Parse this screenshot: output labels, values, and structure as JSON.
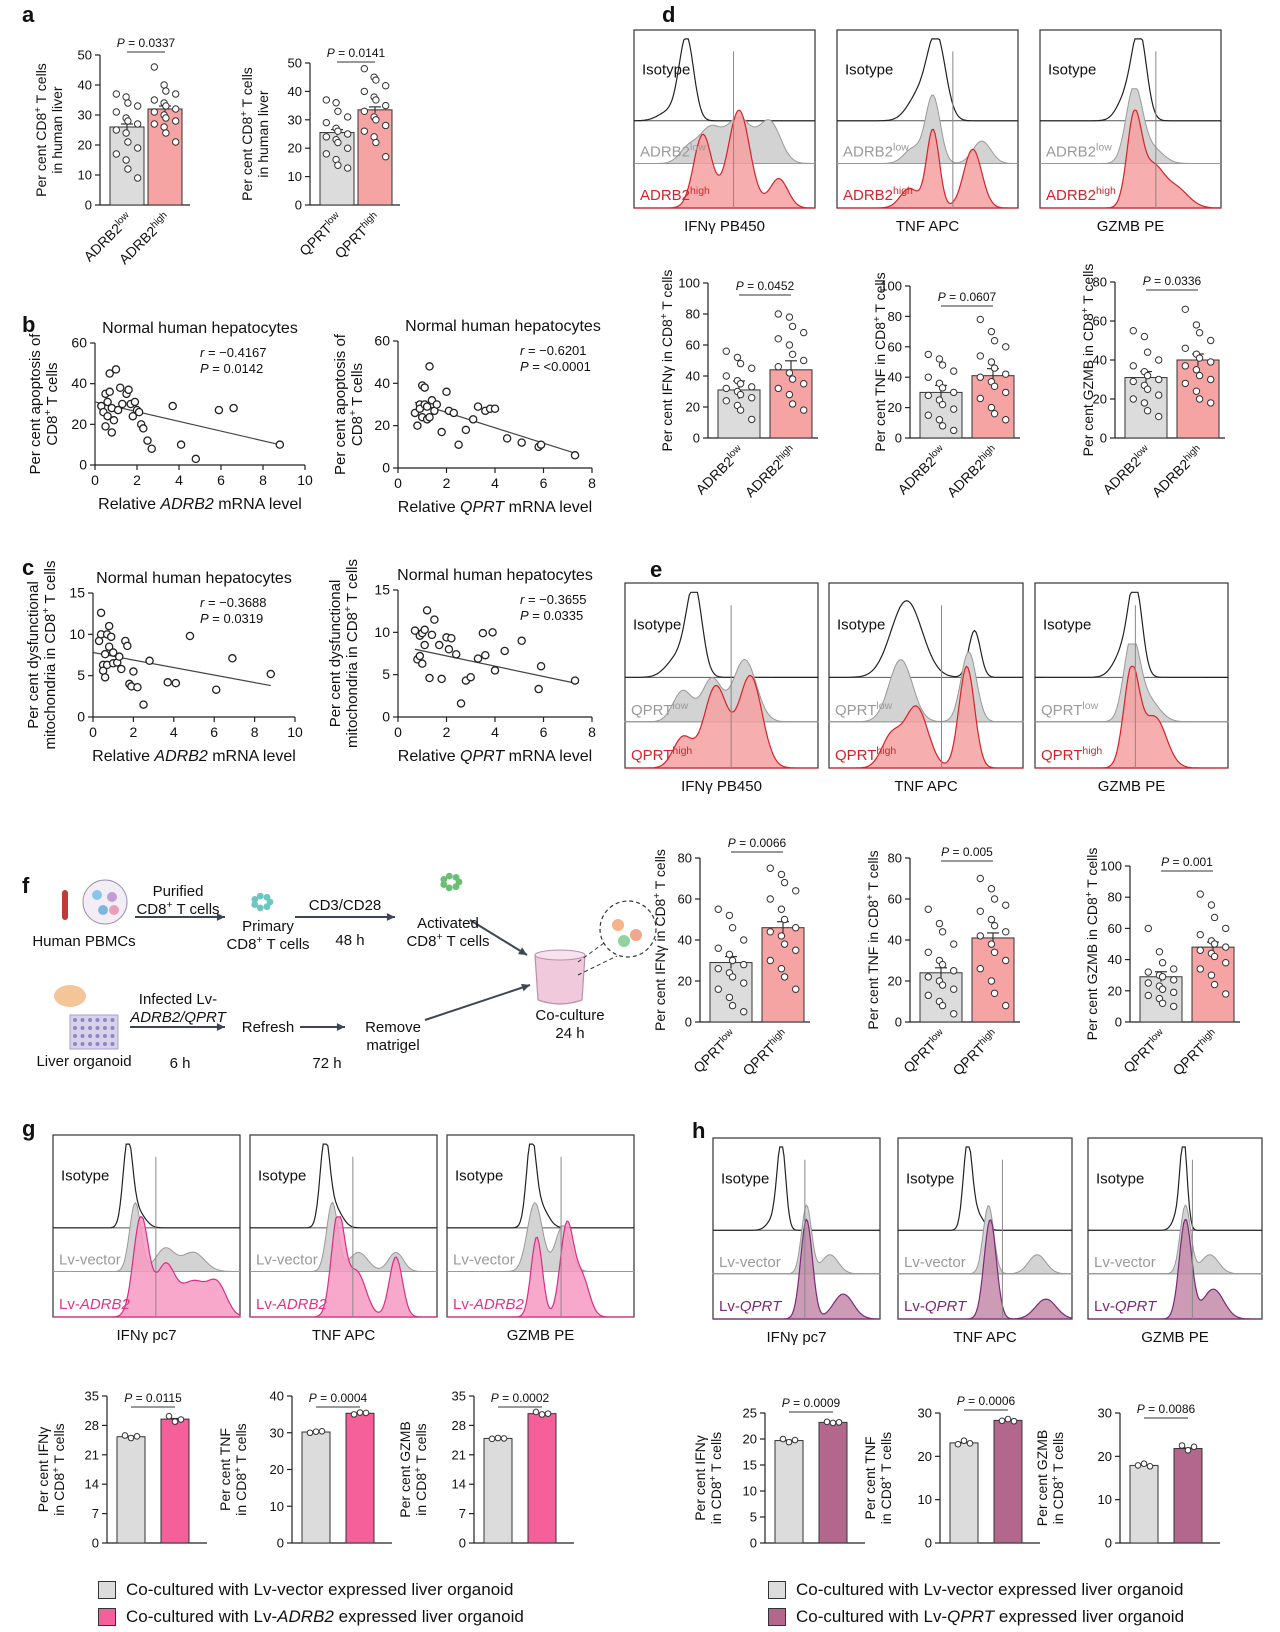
{
  "panel_letters": {
    "a": "a",
    "b": "b",
    "c": "c",
    "d": "d",
    "e": "e",
    "f": "f",
    "g": "g",
    "h": "h"
  },
  "colors": {
    "low": "#dcdcdc",
    "adrb2_high": "#f6a3a3",
    "g_high": "#f5609a",
    "h_high": "#b3678d",
    "ink": "#222222",
    "gray_text": "#9a9a9a",
    "red_text": "#d4232a",
    "pink_text": "#e0338a",
    "purple_text": "#7a2a76"
  },
  "chart_data": [
    {
      "id": "a1",
      "type": "bar",
      "categories": [
        "ADRB2low",
        "ADRB2high"
      ],
      "values": [
        26,
        32
      ],
      "ylim": [
        0,
        50
      ],
      "yticks": [
        0,
        10,
        20,
        30,
        40,
        50
      ],
      "ylabel": "Per cent CD8+ T cells in human liver",
      "p": "P = 0.0337",
      "points": [
        [
          37,
          36,
          34,
          33,
          31,
          29,
          28,
          27,
          25,
          24,
          21,
          19,
          17,
          15,
          12,
          9
        ],
        [
          46,
          40,
          38,
          37,
          35,
          34,
          33,
          32,
          31,
          30,
          29,
          28,
          27,
          26,
          24,
          21
        ]
      ]
    },
    {
      "id": "a2",
      "type": "bar",
      "categories": [
        "QPRTlow",
        "QPRThigh"
      ],
      "values": [
        25.5,
        33.5
      ],
      "ylim": [
        0,
        50
      ],
      "yticks": [
        0,
        10,
        20,
        30,
        40,
        50
      ],
      "ylabel": "Per cent CD8+ T cells in human liver",
      "p": "P = 0.0141",
      "points": [
        [
          37,
          36,
          33,
          31,
          29,
          27,
          26,
          25,
          24,
          23,
          22,
          20,
          18,
          16,
          14,
          13
        ],
        [
          48,
          45,
          44,
          42,
          40,
          38,
          37,
          35,
          33,
          31,
          30,
          28,
          26,
          24,
          22,
          17
        ]
      ]
    },
    {
      "id": "b1",
      "type": "scatter",
      "title": "Normal human hepatocytes",
      "xlabel": "Relative ADRB2 mRNA level",
      "ylabel": "Per cent apoptosis of CD8+ T cells",
      "xlim": [
        0,
        10
      ],
      "ylim": [
        0,
        60
      ],
      "xticks": [
        0,
        2,
        4,
        6,
        8,
        10
      ],
      "yticks": [
        0,
        20,
        40,
        60
      ],
      "r": "r = −0.4167",
      "p": "P = 0.0142",
      "fit": [
        [
          0,
          31
        ],
        [
          8.8,
          10
        ]
      ],
      "x": [
        0.3,
        0.4,
        0.5,
        0.5,
        0.6,
        0.6,
        0.7,
        0.7,
        0.8,
        0.8,
        0.9,
        1.0,
        1.1,
        1.2,
        1.3,
        1.5,
        1.6,
        1.7,
        1.8,
        1.9,
        2.0,
        2.1,
        2.2,
        2.3,
        2.5,
        2.7,
        3.7,
        4.1,
        4.8,
        5.9,
        6.6,
        8.8
      ],
      "y": [
        29,
        26,
        19,
        35,
        31,
        24,
        45,
        36,
        28,
        16,
        22,
        47,
        27,
        38,
        30,
        35,
        37,
        30,
        24,
        31,
        27,
        26,
        20,
        18,
        12,
        8,
        29,
        10,
        3,
        27,
        28,
        10
      ]
    },
    {
      "id": "b2",
      "type": "scatter",
      "title": "Normal human hepatocytes",
      "xlabel": "Relative QPRT mRNA level",
      "ylabel": "Per cent apoptosis of CD8+ T cells",
      "xlim": [
        0,
        8
      ],
      "ylim": [
        0,
        60
      ],
      "xticks": [
        0,
        2,
        4,
        6,
        8
      ],
      "yticks": [
        0,
        20,
        40,
        60
      ],
      "r": "r = −0.6201",
      "p": "P = <0.0001",
      "fit": [
        [
          0.7,
          31
        ],
        [
          7.3,
          7
        ]
      ],
      "x": [
        0.7,
        0.8,
        0.9,
        0.9,
        1.0,
        1.0,
        1.1,
        1.1,
        1.2,
        1.2,
        1.3,
        1.3,
        1.4,
        1.5,
        1.6,
        1.8,
        2.0,
        2.1,
        2.3,
        2.5,
        2.8,
        3.1,
        3.3,
        3.6,
        3.8,
        4.0,
        4.5,
        5.1,
        5.8,
        5.9,
        7.3
      ],
      "y": [
        26,
        20,
        30,
        28,
        24,
        39,
        30,
        38,
        29,
        23,
        48,
        24,
        32,
        27,
        30,
        17,
        36,
        27,
        26,
        11,
        18,
        23,
        29,
        27,
        28,
        28,
        14,
        12,
        10,
        11,
        6
      ]
    },
    {
      "id": "c1",
      "type": "scatter",
      "title": "Normal human hepatocytes",
      "xlabel": "Relative ADRB2 mRNA level",
      "ylabel": "Per cent dysfunctional mitochondria in CD8+ T cells",
      "xlim": [
        0,
        10
      ],
      "ylim": [
        0,
        15
      ],
      "xticks": [
        0,
        2,
        4,
        6,
        8,
        10
      ],
      "yticks": [
        0,
        5,
        10,
        15
      ],
      "r": "r = −0.3688",
      "p": "P = 0.0319",
      "fit": [
        [
          0,
          7.8
        ],
        [
          8.8,
          3.8
        ]
      ],
      "x": [
        0.3,
        0.4,
        0.4,
        0.5,
        0.5,
        0.6,
        0.6,
        0.7,
        0.7,
        0.8,
        0.8,
        0.9,
        1.0,
        1.0,
        1.2,
        1.3,
        1.4,
        1.6,
        1.7,
        1.8,
        1.9,
        2.0,
        2.2,
        2.5,
        2.8,
        3.7,
        4.1,
        4.8,
        6.1,
        6.9,
        8.8
      ],
      "y": [
        9.2,
        12.6,
        10,
        6.3,
        5.6,
        7.6,
        4.8,
        10,
        6.3,
        11,
        8.5,
        9.7,
        6.5,
        7.8,
        6.6,
        7.3,
        5.8,
        9.2,
        8.6,
        4.0,
        3.7,
        5.5,
        3.6,
        1.5,
        6.8,
        4.2,
        4.1,
        9.8,
        3.3,
        7.1,
        5.2
      ]
    },
    {
      "id": "c2",
      "type": "scatter",
      "title": "Normal human hepatocytes",
      "xlabel": "Relative QPRT mRNA level",
      "ylabel": "Per cent dysfunctional mitochondria in CD8+ T cells",
      "xlim": [
        0,
        8
      ],
      "ylim": [
        0,
        15
      ],
      "xticks": [
        0,
        2,
        4,
        6,
        8
      ],
      "yticks": [
        0,
        5,
        10,
        15
      ],
      "r": "r = −0.3655",
      "p": "P = 0.0335",
      "fit": [
        [
          0.7,
          8
        ],
        [
          7.3,
          4
        ]
      ],
      "x": [
        0.7,
        0.8,
        0.9,
        0.9,
        1.0,
        1.0,
        1.1,
        1.1,
        1.2,
        1.3,
        1.4,
        1.5,
        1.7,
        1.8,
        2.0,
        2.1,
        2.2,
        2.4,
        2.6,
        2.8,
        3.0,
        3.3,
        3.5,
        3.6,
        3.9,
        4.0,
        4.4,
        5.1,
        5.8,
        5.9,
        7.3
      ],
      "y": [
        10.2,
        6.8,
        9.6,
        7.2,
        9.9,
        6.3,
        10.3,
        8.5,
        12.6,
        4.6,
        9.7,
        11.5,
        8.5,
        4.5,
        9.4,
        8,
        9.3,
        7.4,
        1.6,
        4.3,
        4.7,
        6.9,
        9.9,
        7.3,
        10,
        5.5,
        7.8,
        9,
        3.3,
        6,
        4.3
      ]
    },
    {
      "id": "d1",
      "type": "bar",
      "categories": [
        "ADRB2low",
        "ADRB2high"
      ],
      "values": [
        31,
        44
      ],
      "ylim": [
        0,
        100
      ],
      "yticks": [
        0,
        20,
        40,
        60,
        80,
        100
      ],
      "ylabel": "Per cent IFNγ in CD8+ T cells",
      "p": "P = 0.0452",
      "points": [
        [
          56,
          52,
          48,
          45,
          40,
          37,
          35,
          33,
          32,
          30,
          28,
          26,
          24,
          21,
          18,
          12
        ],
        [
          80,
          78,
          72,
          68,
          64,
          60,
          54,
          50,
          46,
          42,
          38,
          35,
          32,
          28,
          22,
          18
        ]
      ]
    },
    {
      "id": "d2",
      "type": "bar",
      "categories": [
        "ADRB2low",
        "ADRB2high"
      ],
      "values": [
        30,
        41
      ],
      "ylim": [
        0,
        100
      ],
      "yticks": [
        0,
        20,
        40,
        60,
        80,
        100
      ],
      "ylabel": "Per cent TNF in CD8+ T cells",
      "p": "P = 0.0607",
      "points": [
        [
          55,
          52,
          48,
          44,
          40,
          36,
          33,
          30,
          28,
          25,
          22,
          19,
          15,
          12,
          8,
          5
        ],
        [
          78,
          70,
          64,
          60,
          54,
          50,
          46,
          42,
          40,
          37,
          34,
          30,
          26,
          20,
          16,
          12
        ]
      ]
    },
    {
      "id": "d3",
      "type": "bar",
      "categories": [
        "ADRB2low",
        "ADRB2high"
      ],
      "values": [
        31,
        40
      ],
      "ylim": [
        0,
        80
      ],
      "yticks": [
        0,
        20,
        40,
        60,
        80
      ],
      "ylabel": "Per cent GZMB in CD8+ T cells",
      "p": "P = 0.0336",
      "points": [
        [
          55,
          52,
          44,
          40,
          37,
          34,
          32,
          30,
          29,
          27,
          25,
          22,
          20,
          18,
          14,
          11
        ],
        [
          66,
          58,
          54,
          50,
          46,
          43,
          41,
          39,
          37,
          35,
          32,
          30,
          28,
          24,
          20,
          18
        ]
      ]
    },
    {
      "id": "e1",
      "type": "bar",
      "categories": [
        "QPRTlow",
        "QPRThigh"
      ],
      "values": [
        29,
        46
      ],
      "ylim": [
        0,
        80
      ],
      "yticks": [
        0,
        20,
        40,
        60,
        80
      ],
      "ylabel": "Per cent IFNγ in CD8+ T cells",
      "p": "P = 0.0066",
      "points": [
        [
          55,
          52,
          46,
          40,
          36,
          33,
          30,
          28,
          26,
          24,
          22,
          19,
          16,
          12,
          8,
          5
        ],
        [
          75,
          72,
          68,
          64,
          60,
          55,
          50,
          46,
          44,
          42,
          38,
          35,
          30,
          26,
          22,
          16
        ]
      ]
    },
    {
      "id": "e2",
      "type": "bar",
      "categories": [
        "QPRTlow",
        "QPRThigh"
      ],
      "values": [
        24,
        41
      ],
      "ylim": [
        0,
        80
      ],
      "yticks": [
        0,
        20,
        40,
        60,
        80
      ],
      "ylabel": "Per cent TNF in CD8+ T cells",
      "p": "P = 0.005",
      "points": [
        [
          55,
          48,
          44,
          38,
          34,
          30,
          28,
          25,
          22,
          20,
          18,
          16,
          13,
          10,
          8,
          4
        ],
        [
          70,
          65,
          60,
          57,
          54,
          50,
          47,
          44,
          42,
          38,
          34,
          30,
          26,
          20,
          14,
          8
        ]
      ]
    },
    {
      "id": "e3",
      "type": "bar",
      "categories": [
        "QPRTlow",
        "QPRThigh"
      ],
      "values": [
        29,
        48
      ],
      "ylim": [
        0,
        100
      ],
      "yticks": [
        0,
        20,
        40,
        60,
        80,
        100
      ],
      "ylabel": "Per cent GZMB in CD8+ T cells",
      "p": "P = 0.001",
      "points": [
        [
          60,
          45,
          38,
          34,
          32,
          30,
          29,
          27,
          25,
          23,
          21,
          19,
          17,
          15,
          12,
          10
        ],
        [
          82,
          75,
          67,
          60,
          56,
          52,
          50,
          48,
          46,
          44,
          42,
          38,
          34,
          30,
          24,
          18
        ]
      ]
    },
    {
      "id": "g1",
      "type": "bar",
      "categories": [
        "Lv-vector",
        "Lv-ADRB2"
      ],
      "values": [
        25.3,
        29.5
      ],
      "ylim": [
        0,
        35
      ],
      "yticks": [
        0,
        7,
        14,
        21,
        28,
        35
      ],
      "ylabel": "Per cent IFNγ in CD8+ T cells",
      "p": "P = 0.0115",
      "points": [
        [
          25.6,
          25.0,
          25.4
        ],
        [
          30.2,
          28.9,
          29.4
        ]
      ]
    },
    {
      "id": "g2",
      "type": "bar",
      "categories": [
        "Lv-vector",
        "Lv-ADRB2"
      ],
      "values": [
        30.2,
        35.3
      ],
      "ylim": [
        0,
        40
      ],
      "yticks": [
        0,
        10,
        20,
        30,
        40
      ],
      "ylabel": "Per cent TNF in CD8+ T cells",
      "p": "P = 0.0004",
      "points": [
        [
          30.0,
          30.3,
          30.4
        ],
        [
          35.0,
          35.5,
          35.4
        ]
      ]
    },
    {
      "id": "g3",
      "type": "bar",
      "categories": [
        "Lv-vector",
        "Lv-ADRB2"
      ],
      "values": [
        24.9,
        30.8
      ],
      "ylim": [
        0,
        35
      ],
      "yticks": [
        0,
        7,
        14,
        21,
        28,
        35
      ],
      "ylabel": "Per cent GZMB in CD8+ T cells",
      "p": "P = 0.0002",
      "points": [
        [
          24.8,
          25.0,
          24.9
        ],
        [
          31.2,
          30.6,
          30.8
        ]
      ]
    },
    {
      "id": "h1",
      "type": "bar",
      "categories": [
        "Lv-vector",
        "Lv-QPRT"
      ],
      "values": [
        19.7,
        23.2
      ],
      "ylim": [
        0,
        25
      ],
      "yticks": [
        0,
        5,
        10,
        15,
        20,
        25
      ],
      "ylabel": "Per cent IFNγ in CD8+ T cells",
      "p": "P = 0.0009",
      "points": [
        [
          20.0,
          19.4,
          19.8
        ],
        [
          23.3,
          23.1,
          23.2
        ]
      ]
    },
    {
      "id": "h2",
      "type": "bar",
      "categories": [
        "Lv-vector",
        "Lv-QPRT"
      ],
      "values": [
        23.1,
        28.3
      ],
      "ylim": [
        0,
        30
      ],
      "yticks": [
        0,
        10,
        20,
        30
      ],
      "ylabel": "Per cent TNF in CD8+ T cells",
      "p": "P = 0.0006",
      "points": [
        [
          22.8,
          23.6,
          23.0
        ],
        [
          28.2,
          28.6,
          28.1
        ]
      ]
    },
    {
      "id": "h3",
      "type": "bar",
      "categories": [
        "Lv-vector",
        "Lv-QPRT"
      ],
      "values": [
        17.9,
        21.8
      ],
      "ylim": [
        0,
        30
      ],
      "yticks": [
        0,
        10,
        20,
        30
      ],
      "ylabel": "Per cent GZMB in CD8+ T cells",
      "p": "P = 0.0086",
      "points": [
        [
          17.9,
          18.3,
          17.7
        ],
        [
          22.5,
          21.4,
          22.2
        ]
      ]
    }
  ],
  "flow_panels": {
    "isotype": "Isotype",
    "d": {
      "low": "ADRB2",
      "high": "ADRB2",
      "sup_low": "low",
      "sup_high": "high",
      "markers": [
        "IFNγ PB450",
        "TNF APC",
        "GZMB PE"
      ]
    },
    "e": {
      "low": "QPRT",
      "high": "QPRT",
      "sup_low": "low",
      "sup_high": "high",
      "markers": [
        "IFNγ PB450",
        "TNF APC",
        "GZMB PE"
      ]
    },
    "g": {
      "low": "Lv-vector",
      "high_prefix": "Lv-",
      "high_gene": "ADRB2",
      "markers": [
        "IFNγ pc7",
        "TNF APC",
        "GZMB PE"
      ]
    },
    "h": {
      "low": "Lv-vector",
      "high_prefix": "Lv-",
      "high_gene": "QPRT",
      "markers": [
        "IFNγ pc7",
        "TNF APC",
        "GZMB PE"
      ]
    }
  },
  "schematic": {
    "human_pbmcs": "Human PBMCs",
    "purified_1": "Purified",
    "purified_2": "CD8",
    "purified_3": " T cells",
    "primary_1": "Primary",
    "primary_2": "CD8",
    "primary_3": " T cells",
    "cd3cd28": "CD3/CD28",
    "t48": "48 h",
    "activated_1": "Activated",
    "activated_2": "CD8",
    "activated_3": " T cells",
    "infected_1": "Infected Lv-",
    "infected_2": "ADRB2/QPRT",
    "liver_organoid": "Liver organoid",
    "t6": "6 h",
    "refresh": "Refresh",
    "t72": "72 h",
    "remove_1": "Remove",
    "remove_2": "matrigel",
    "coculture_1": "Co-culture",
    "coculture_2": "24 h",
    "plus": "+"
  },
  "legend_g": {
    "low": "Co-cultured with Lv-vector expressed liver organoid",
    "high_pre": "Co-cultured with Lv-",
    "high_gene": "ADRB2",
    "high_post": " expressed liver organoid"
  },
  "legend_h": {
    "low": "Co-cultured with Lv-vector expressed liver organoid",
    "high_pre": "Co-cultured with Lv-",
    "high_gene": "QPRT",
    "high_post": " expressed liver organoid"
  }
}
